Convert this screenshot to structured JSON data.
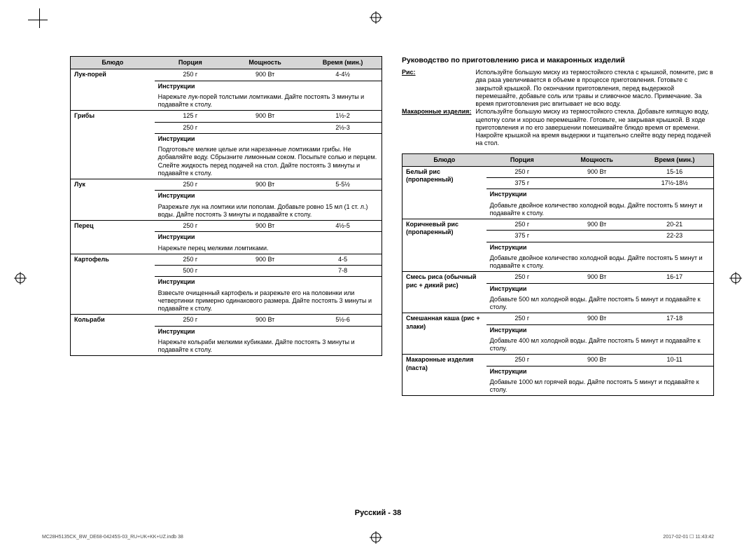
{
  "left_table": {
    "headers": [
      "Блюдо",
      "Порция",
      "Мощность",
      "Время (мин.)"
    ],
    "groups": [
      {
        "name": "Лук-порей",
        "rows": [
          [
            "250 г",
            "900 Вт",
            "4-4½"
          ]
        ],
        "instr_head": "Инструкции",
        "instr": "Нарежьте лук-порей толстыми ломтиками. Дайте постоять 3 минуты и подавайте к столу."
      },
      {
        "name": "Грибы",
        "rows": [
          [
            "125 г",
            "900 Вт",
            "1½-2"
          ],
          [
            "250 г",
            "",
            "2½-3"
          ]
        ],
        "instr_head": "Инструкции",
        "instr": "Подготовьте мелкие целые или нарезанные ломтиками грибы. Не добавляйте воду. Сбрызните лимонным соком. Посыпьте солью и перцем. Слейте жидкость перед подачей на стол. Дайте постоять 3 минуты и подавайте к столу."
      },
      {
        "name": "Лук",
        "rows": [
          [
            "250 г",
            "900 Вт",
            "5-5½"
          ]
        ],
        "instr_head": "Инструкции",
        "instr": "Разрежьте лук на ломтики или пополам. Добавьте ровно 15 мл (1 ст. л.) воды. Дайте постоять 3 минуты и подавайте к столу."
      },
      {
        "name": "Перец",
        "rows": [
          [
            "250 г",
            "900 Вт",
            "4½-5"
          ]
        ],
        "instr_head": "Инструкции",
        "instr": "Нарежьте перец мелкими ломтиками."
      },
      {
        "name": "Картофель",
        "rows": [
          [
            "250 г",
            "900 Вт",
            "4-5"
          ],
          [
            "500 г",
            "",
            "7-8"
          ]
        ],
        "instr_head": "Инструкции",
        "instr": "Взвесьте очищенный картофель и разрежьте его на половинки или четвертинки примерно одинакового размера. Дайте постоять 3 минуты и подавайте к столу."
      },
      {
        "name": "Кольраби",
        "rows": [
          [
            "250 г",
            "900 Вт",
            "5½-6"
          ]
        ],
        "instr_head": "Инструкции",
        "instr": "Нарежьте кольраби мелкими кубиками. Дайте постоять 3 минуты и подавайте к столу."
      }
    ]
  },
  "right": {
    "title": "Руководство по приготовлению риса и макаронных изделий",
    "intro": [
      {
        "k": "Рис:",
        "v": "Используйте большую миску из термостойкого стекла с крышкой, помните, рис в два раза увеличивается в объеме в процессе приготовления. Готовьте с закрытой крышкой. По окончании приготовления, перед выдержкой перемешайте, добавьте соль или травы и сливочное масло. Примечание. За время приготовления рис впитывает не всю воду."
      },
      {
        "k": "Макаронные изделия:",
        "v": "Используйте большую миску из термостойкого стекла. Добавьте кипящую воду, щепотку соли и хорошо перемешайте. Готовьте, не закрывая крышкой. В ходе приготовления и по его завершении помешивайте блюдо время от времени. Накройте крышкой на время выдержки и тщательно слейте воду перед подачей на стол."
      }
    ],
    "headers": [
      "Блюдо",
      "Порция",
      "Мощность",
      "Время (мин.)"
    ],
    "groups": [
      {
        "name": "Белый рис (пропаренный)",
        "rows": [
          [
            "250 г",
            "900 Вт",
            "15-16"
          ],
          [
            "375 г",
            "",
            "17½-18½"
          ]
        ],
        "instr_head": "Инструкции",
        "instr": "Добавьте двойное количество холодной воды. Дайте постоять 5 минут и подавайте к столу."
      },
      {
        "name": "Коричневый рис (пропаренный)",
        "rows": [
          [
            "250 г",
            "900 Вт",
            "20-21"
          ],
          [
            "375 г",
            "",
            "22-23"
          ]
        ],
        "instr_head": "Инструкции",
        "instr": "Добавьте двойное количество холодной воды. Дайте постоять 5 минут и подавайте к столу."
      },
      {
        "name": "Смесь риса (обычный рис + дикий рис)",
        "rows": [
          [
            "250 г",
            "900 Вт",
            "16-17"
          ]
        ],
        "instr_head": "Инструкции",
        "instr": "Добавьте 500 мл холодной воды. Дайте постоять 5 минут и подавайте к столу."
      },
      {
        "name": "Смешанная каша (рис + злаки)",
        "rows": [
          [
            "250 г",
            "900 Вт",
            "17-18"
          ]
        ],
        "instr_head": "Инструкции",
        "instr": "Добавьте 400 мл холодной воды. Дайте постоять 5 минут и подавайте к столу."
      },
      {
        "name": "Макаронные изделия (паста)",
        "rows": [
          [
            "250 г",
            "900 Вт",
            "10-11"
          ]
        ],
        "instr_head": "Инструкции",
        "instr": "Добавьте 1000 мл горячей воды. Дайте постоять 5 минут и подавайте к столу."
      }
    ]
  },
  "footer": "Русский - 38",
  "print_left": "MC28H5135CK_BW_DE68-04245S-03_RU+UK+KK+UZ.indb   38",
  "print_right": "2017-02-01   ☐ 11:43:42",
  "col_widths": {
    "c1": "27%",
    "c2": "23%",
    "c3": "25%",
    "c4": "25%"
  }
}
